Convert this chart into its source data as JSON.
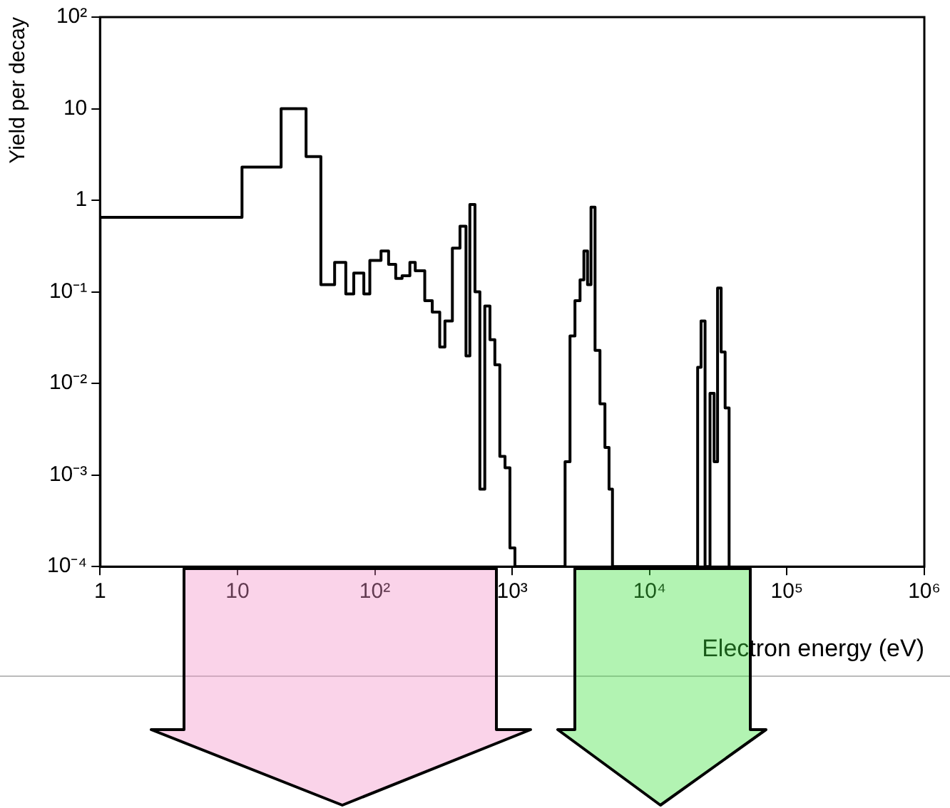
{
  "chart_data": {
    "type": "histogram",
    "xlabel": "Electron energy (eV)",
    "ylabel": "Yield per decay",
    "log": "xy",
    "color": "#000000",
    "xlim": [
      1,
      1000000
    ],
    "xticks": [
      1,
      10,
      {
        "value": 100,
        "label": "10²"
      },
      {
        "value": 1000,
        "label": "10³"
      },
      {
        "value": 10000,
        "label": "10⁴"
      },
      {
        "value": 100000,
        "label": "10⁵"
      },
      {
        "value": 1000000,
        "label": "10⁶"
      }
    ],
    "ylim": [
      0.0001,
      100
    ],
    "yticks": [
      {
        "value": 0.0001,
        "label": "10⁻⁴"
      },
      {
        "value": 0.001,
        "label": "10⁻³"
      },
      {
        "value": 0.01,
        "label": "10⁻²"
      },
      {
        "value": 0.1,
        "label": "10⁻¹"
      },
      1,
      10,
      {
        "value": 100,
        "label": "10²"
      }
    ],
    "bins": [
      1,
      10.8,
      20.8,
      31.6,
      40.5,
      51,
      61.5,
      70.3,
      83.2,
      92,
      111,
      126,
      142,
      158,
      180,
      197,
      231,
      262,
      297,
      324,
      367,
      417,
      461,
      492,
      536,
      582,
      632,
      689,
      748,
      813,
      887,
      963,
      1047,
      2427,
      2636,
      2864,
      3119,
      3327,
      3536,
      3748,
      4010,
      4355,
      4733,
      5070,
      5370,
      22390,
      23700,
      25350,
      27540,
      29510,
      31260,
      33190,
      35480,
      37930
    ],
    "values": [
      0.65,
      2.3,
      10,
      3.0,
      0.12,
      0.21,
      0.095,
      0.16,
      0.095,
      0.22,
      0.28,
      0.2,
      0.14,
      0.15,
      0.21,
      0.17,
      0.08,
      0.06,
      0.025,
      0.048,
      0.3,
      0.52,
      0.02,
      0.9,
      0.1,
      0.0007,
      0.07,
      0.03,
      0.016,
      0.0016,
      0.0012,
      0.00016,
      null,
      0.0014,
      0.033,
      0.08,
      0.135,
      0.28,
      0.12,
      0.84,
      0.023,
      0.006,
      0.002,
      0.0007,
      null,
      0.015,
      0.048,
      null,
      0.0078,
      0.0014,
      0.11,
      0.022,
      0.0054
    ]
  }
}
